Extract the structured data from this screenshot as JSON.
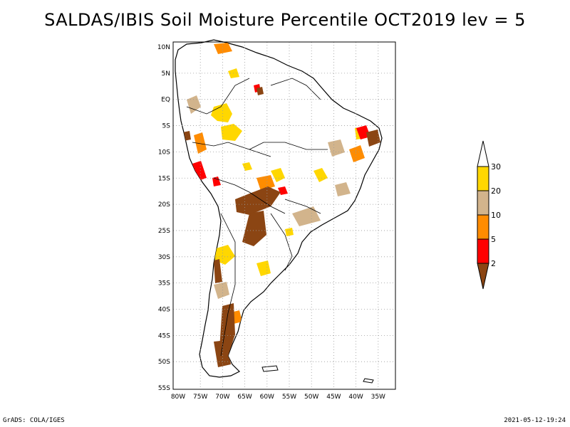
{
  "title": "SALDAS/IBIS Soil Moisture Percentile OCT2019 lev = 5",
  "map": {
    "lat_labels": [
      "10N",
      "5N",
      "EQ",
      "5S",
      "10S",
      "15S",
      "20S",
      "25S",
      "30S",
      "35S",
      "40S",
      "45S",
      "50S",
      "55S"
    ],
    "lon_labels": [
      "80W",
      "75W",
      "70W",
      "65W",
      "60W",
      "55W",
      "50W",
      "45W",
      "40W",
      "35W"
    ],
    "grid": "dotted",
    "region": "South America"
  },
  "legend": {
    "labels": [
      "2",
      "5",
      "10",
      "20",
      "30"
    ],
    "bins": [
      {
        "range": "<2",
        "color": "#8B4513"
      },
      {
        "range": "2-5",
        "color": "#FF0000"
      },
      {
        "range": "5-10",
        "color": "#FF8C00"
      },
      {
        "range": "10-20",
        "color": "#D2B48C"
      },
      {
        "range": "20-30",
        "color": "#FFD700"
      },
      {
        "range": ">30",
        "color": "#FFFFFF"
      }
    ]
  },
  "footer": {
    "left": "GrADS: COLA/IGES",
    "right": "2021-05-12-19:24"
  }
}
